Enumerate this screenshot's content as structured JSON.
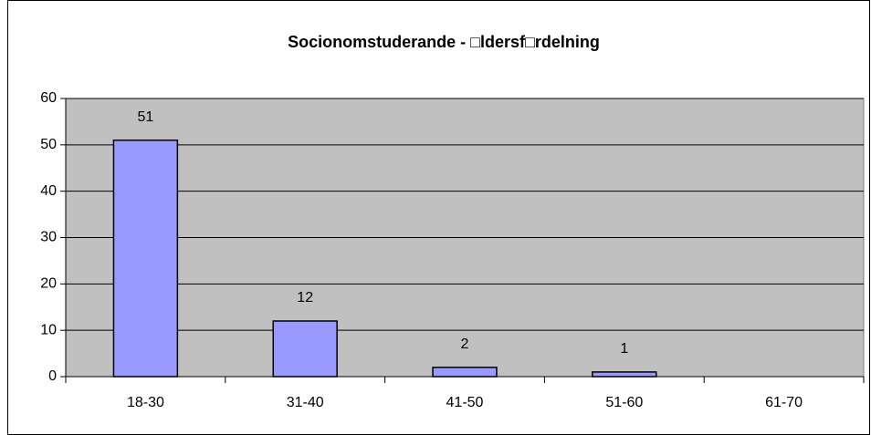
{
  "chart_data": {
    "type": "bar",
    "title": "Socionomstuderande - □ldersf□rdelning",
    "categories": [
      "18-30",
      "31-40",
      "41-50",
      "51-60",
      "61-70"
    ],
    "values": [
      51,
      12,
      2,
      1,
      null
    ],
    "color": "#9999ff",
    "ylim": [
      0,
      60
    ],
    "yticks": [
      0,
      10,
      20,
      30,
      40,
      50,
      60
    ],
    "grid": true
  }
}
